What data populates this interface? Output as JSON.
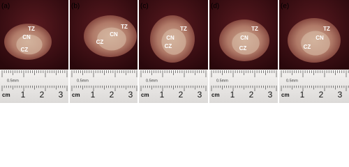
{
  "panels": [
    {
      "label": "(a)",
      "annotations": [
        "TZ",
        "CN",
        "CZ"
      ],
      "ruler": {
        "scale_note": "0.5mm",
        "unit": "cm",
        "numbers": [
          "1",
          "2",
          "3"
        ]
      }
    },
    {
      "label": "(b)",
      "annotations": [
        "TZ",
        "CN",
        "CZ"
      ],
      "ruler": {
        "scale_note": "0.5mm",
        "unit": "cm",
        "numbers": [
          "1",
          "2",
          "3"
        ]
      }
    },
    {
      "label": "(c)",
      "annotations": [
        "TZ",
        "CN",
        "CZ"
      ],
      "ruler": {
        "scale_note": "0.5mm",
        "unit": "cm",
        "numbers": [
          "1",
          "2",
          "3"
        ]
      }
    },
    {
      "label": "(d)",
      "annotations": [
        "TZ",
        "CN",
        "CZ"
      ],
      "ruler": {
        "scale_note": "0.5mm",
        "unit": "cm",
        "numbers": [
          "1",
          "2",
          "3"
        ]
      }
    },
    {
      "label": "(e)",
      "annotations": [
        "TZ",
        "CN",
        "CZ"
      ],
      "ruler": {
        "scale_note": "0.5mm",
        "unit": "cm",
        "numbers": [
          "1",
          "2",
          "3"
        ]
      }
    }
  ]
}
